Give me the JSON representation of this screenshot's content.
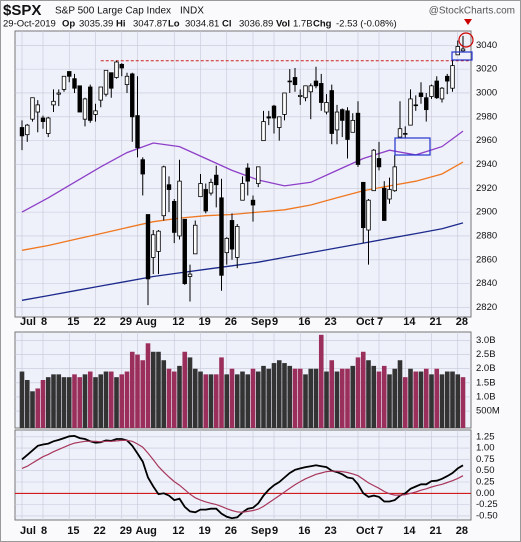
{
  "header": {
    "symbol": "$SPX",
    "name": "S&P 500 Large Cap Index",
    "exchange": "INDX",
    "source": "@StockCharts.com",
    "date": "29-Oct-2019",
    "quote": [
      {
        "label": "Op",
        "value": "3035.39"
      },
      {
        "label": "Hi",
        "value": "3047.87"
      },
      {
        "label": "Lo",
        "value": "3034.81"
      },
      {
        "label": "Cl",
        "value": "3036.89"
      },
      {
        "label": "Vol",
        "value": "1.7B"
      },
      {
        "label": "Chg",
        "value": "-2.53 (-0.08%)"
      }
    ]
  },
  "chart_data": [
    {
      "type": "candlestick",
      "color": "#000000",
      "categories": [
        "Jul",
        null,
        null,
        null,
        "8",
        null,
        null,
        null,
        null,
        "15",
        null,
        null,
        null,
        null,
        "22",
        null,
        null,
        null,
        null,
        "29",
        null,
        null,
        "Aug",
        null,
        null,
        null,
        null,
        null,
        null,
        "12",
        null,
        null,
        null,
        null,
        "19",
        null,
        null,
        null,
        null,
        "26",
        null,
        null,
        null,
        null,
        "Sep",
        null,
        null,
        null,
        "9",
        null,
        null,
        null,
        null,
        "16",
        null,
        null,
        null,
        null,
        "23",
        null,
        null,
        null,
        null,
        null,
        "Oct",
        null,
        null,
        null,
        "7",
        null,
        null,
        null,
        null,
        "14",
        null,
        null,
        null,
        null,
        "21",
        null,
        null,
        null,
        null,
        "28",
        null
      ],
      "open": [
        2971,
        2965,
        2978,
        2984,
        2979,
        2966,
        2990,
        2999,
        3003,
        3018,
        3012,
        3006,
        2978,
        3005,
        2982,
        2994,
        2999,
        3017,
        3013,
        3024,
        3007,
        3016,
        2981,
        2944,
        2898,
        2862,
        2867,
        2897,
        2923,
        2909,
        2880,
        2894,
        2846,
        2865,
        2913,
        2919,
        2916,
        2931,
        2912,
        2866,
        2893,
        2862,
        2910,
        2937,
        2910,
        2924,
        2960,
        2980,
        2989,
        2971,
        2982,
        3010,
        3013,
        2997,
        2996,
        3001,
        3010,
        3008,
        2984,
        3002,
        2969,
        2986,
        2985,
        2967,
        2983,
        2925,
        2885,
        2918,
        2945,
        2920,
        2911,
        2918,
        2963,
        2966,
        2973,
        2990,
        3000,
        2996,
        2997,
        3010,
        2995,
        3014,
        3004,
        3032,
        3035.39
      ],
      "high": [
        2977,
        2974,
        2996,
        2994,
        2981,
        2980,
        3003,
        3003,
        3014,
        3018,
        3016,
        3006,
        2996,
        3007,
        2991,
        3005,
        3019,
        3017,
        3027,
        3025,
        3017,
        3017,
        3014,
        2946,
        2898,
        2885,
        2885,
        2939,
        2930,
        2911,
        2944,
        2894,
        2856,
        2893,
        2932,
        2924,
        2928,
        2939,
        2928,
        2879,
        2899,
        2890,
        2930,
        2941,
        2914,
        2938,
        2985,
        2985,
        2990,
        2980,
        3000,
        3020,
        3021,
        3003,
        3006,
        3008,
        3022,
        3016,
        2999,
        3007,
        2990,
        2987,
        2988,
        2983,
        2993,
        2925,
        2911,
        2953,
        2959,
        2926,
        2929,
        2948,
        2993,
        2972,
        3003,
        2998,
        3009,
        3000,
        3007,
        3014,
        3005,
        3016,
        3028,
        3044,
        3047.87
      ],
      "low": [
        2952,
        2959,
        2976,
        2967,
        2970,
        2963,
        2984,
        2989,
        3001,
        3009,
        3000,
        2984,
        2972,
        2975,
        2976,
        2988,
        2997,
        2996,
        3012,
        3014,
        3000,
        2959,
        2946,
        2914,
        2822,
        2848,
        2848,
        2893,
        2900,
        2874,
        2877,
        2839,
        2825,
        2865,
        2913,
        2899,
        2914,
        2904,
        2834,
        2856,
        2860,
        2853,
        2910,
        2914,
        2892,
        2921,
        2960,
        2973,
        2966,
        2960,
        2977,
        3000,
        3001,
        2990,
        2993,
        2978,
        3004,
        2985,
        2982,
        2957,
        2957,
        2963,
        2945,
        2967,
        2938,
        2874,
        2856,
        2918,
        2935,
        2893,
        2907,
        2917,
        2963,
        2962,
        2973,
        2985,
        2991,
        2976,
        2995,
        2995,
        2992,
        2999,
        3001,
        3032,
        3034.81
      ],
      "close": [
        2964,
        2973,
        2996,
        2990,
        2976,
        2979,
        2993,
        3000,
        3014,
        3014,
        3004,
        2984,
        2995,
        2977,
        2985,
        3005,
        3019,
        3004,
        3026,
        3021,
        3014,
        2980,
        2954,
        2932,
        2844,
        2881,
        2884,
        2938,
        2919,
        2883,
        2926,
        2840,
        2848,
        2889,
        2924,
        2901,
        2925,
        2923,
        2847,
        2878,
        2869,
        2888,
        2924,
        2926,
        2906,
        2938,
        2976,
        2979,
        2979,
        2980,
        3000,
        3010,
        3007,
        2998,
        3006,
        3006,
        3006,
        2992,
        2992,
        2966,
        2984,
        2977,
        2961,
        2977,
        2940,
        2887,
        2910,
        2952,
        2938,
        2893,
        2919,
        2938,
        2970,
        2966,
        2995,
        2990,
        2997,
        2986,
        3006,
        2996,
        3004,
        3010,
        3023,
        3039,
        3036.89
      ],
      "overlays": [
        {
          "color": "#8e3fc8",
          "x": [
            0,
            5,
            10,
            15,
            20,
            25,
            30,
            35,
            40,
            45,
            50,
            55,
            60,
            65,
            70,
            75,
            80,
            84
          ],
          "values": [
            2900,
            2912,
            2925,
            2938,
            2950,
            2958,
            2955,
            2945,
            2935,
            2927,
            2922,
            2925,
            2935,
            2945,
            2952,
            2948,
            2955,
            2968
          ]
        },
        {
          "color": "#f07820",
          "x": [
            0,
            5,
            10,
            15,
            20,
            25,
            30,
            35,
            40,
            45,
            50,
            55,
            60,
            65,
            70,
            75,
            80,
            84
          ],
          "values": [
            2868,
            2872,
            2877,
            2882,
            2887,
            2892,
            2895,
            2897,
            2898,
            2900,
            2902,
            2906,
            2912,
            2918,
            2922,
            2926,
            2932,
            2942
          ]
        },
        {
          "color": "#1c2a8c",
          "x": [
            0,
            5,
            10,
            15,
            20,
            25,
            30,
            35,
            40,
            45,
            50,
            55,
            60,
            65,
            70,
            75,
            80,
            84
          ],
          "values": [
            2826,
            2830,
            2834,
            2838,
            2842,
            2846,
            2849,
            2852,
            2855,
            2858,
            2862,
            2866,
            2870,
            2874,
            2878,
            2882,
            2886,
            2891
          ]
        }
      ],
      "hline": 3027,
      "hline_color": "#cc2222",
      "ylim": [
        2812,
        3052
      ],
      "yticks": [
        2820,
        2840,
        2860,
        2880,
        2900,
        2920,
        2940,
        2960,
        2980,
        3000,
        3020,
        3040
      ],
      "grid": true
    },
    {
      "type": "bar",
      "up_color": "#333333",
      "down_color": "#9b2f5c",
      "values": [
        1.9,
        1.6,
        1.2,
        1.3,
        1.6,
        1.7,
        1.8,
        1.8,
        1.7,
        1.7,
        1.8,
        1.7,
        1.8,
        1.9,
        1.7,
        1.8,
        1.9,
        1.9,
        1.7,
        1.8,
        1.9,
        2.6,
        2.5,
        2.3,
        2.9,
        2.6,
        2.6,
        2.3,
        2.0,
        1.9,
        2.1,
        2.6,
        2.4,
        2.0,
        1.9,
        1.8,
        1.8,
        1.8,
        2.4,
        1.8,
        2.0,
        1.8,
        1.9,
        1.8,
        2.0,
        1.9,
        2.1,
        2.0,
        2.2,
        2.3,
        2.2,
        2.1,
        2.0,
        2.0,
        1.8,
        2.0,
        2.0,
        3.2,
        1.9,
        2.3,
        1.9,
        2.0,
        2.0,
        2.1,
        2.4,
        2.6,
        2.3,
        2.1,
        1.9,
        2.1,
        1.8,
        2.0,
        2.3,
        1.7,
        2.0,
        1.9,
        1.9,
        2.0,
        1.8,
        2.0,
        1.8,
        1.9,
        1.9,
        1.8,
        1.7
      ],
      "ylim": [
        -0.1,
        3.3
      ],
      "yticks": [
        {
          "value": 0.5,
          "label": "500M"
        },
        {
          "value": 1,
          "label": "1.0B"
        },
        {
          "value": 1.5,
          "label": "1.5B"
        },
        {
          "value": 2,
          "label": "2.0B"
        },
        {
          "value": 2.5,
          "label": "2.5B"
        },
        {
          "value": 3,
          "label": "3.0B"
        }
      ],
      "grid": true
    },
    {
      "type": "line",
      "series": [
        {
          "color": "#000000",
          "values": [
            0.75,
            0.85,
            0.95,
            1.05,
            1.08,
            1.1,
            1.15,
            1.18,
            1.22,
            1.26,
            1.27,
            1.22,
            1.2,
            1.15,
            1.12,
            1.13,
            1.17,
            1.16,
            1.2,
            1.2,
            1.17,
            1.05,
            0.88,
            0.7,
            0.35,
            0.15,
            -0.02,
            0.0,
            -0.05,
            -0.15,
            -0.12,
            -0.3,
            -0.4,
            -0.42,
            -0.36,
            -0.36,
            -0.34,
            -0.34,
            -0.45,
            -0.52,
            -0.55,
            -0.53,
            -0.42,
            -0.34,
            -0.32,
            -0.22,
            -0.05,
            0.08,
            0.18,
            0.25,
            0.35,
            0.45,
            0.52,
            0.55,
            0.58,
            0.6,
            0.62,
            0.6,
            0.58,
            0.5,
            0.47,
            0.42,
            0.35,
            0.33,
            0.2,
            0.0,
            -0.08,
            -0.05,
            -0.08,
            -0.18,
            -0.18,
            -0.15,
            -0.05,
            0.0,
            0.1,
            0.15,
            0.2,
            0.2,
            0.27,
            0.28,
            0.32,
            0.38,
            0.45,
            0.55,
            0.62
          ]
        },
        {
          "color": "#a8385c",
          "values": [
            0.55,
            0.6,
            0.67,
            0.74,
            0.81,
            0.86,
            0.92,
            0.97,
            1.02,
            1.07,
            1.11,
            1.13,
            1.15,
            1.15,
            1.15,
            1.14,
            1.15,
            1.15,
            1.16,
            1.17,
            1.17,
            1.15,
            1.09,
            1.02,
            0.89,
            0.74,
            0.59,
            0.47,
            0.36,
            0.26,
            0.18,
            0.08,
            -0.02,
            -0.1,
            -0.15,
            -0.19,
            -0.22,
            -0.25,
            -0.29,
            -0.34,
            -0.38,
            -0.41,
            -0.42,
            -0.4,
            -0.38,
            -0.35,
            -0.29,
            -0.21,
            -0.13,
            -0.05,
            0.03,
            0.11,
            0.19,
            0.26,
            0.32,
            0.37,
            0.42,
            0.45,
            0.48,
            0.49,
            0.49,
            0.48,
            0.46,
            0.43,
            0.39,
            0.31,
            0.23,
            0.17,
            0.11,
            0.04,
            -0.01,
            -0.04,
            -0.04,
            -0.03,
            0.0,
            0.03,
            0.07,
            0.1,
            0.14,
            0.17,
            0.2,
            0.24,
            0.28,
            0.33,
            0.39
          ]
        }
      ],
      "zero_line": 0,
      "zero_color": "#cc0000",
      "ylim": [
        -0.59,
        1.4
      ],
      "yticks": [
        {
          "value": -0.5,
          "label": "-0.50"
        },
        -0.25,
        {
          "value": 0,
          "label": "0.00"
        },
        0.25,
        {
          "value": 0.5,
          "label": "0.50"
        },
        0.75,
        {
          "value": 1,
          "label": "1.00"
        },
        1.25
      ],
      "grid": true
    }
  ]
}
